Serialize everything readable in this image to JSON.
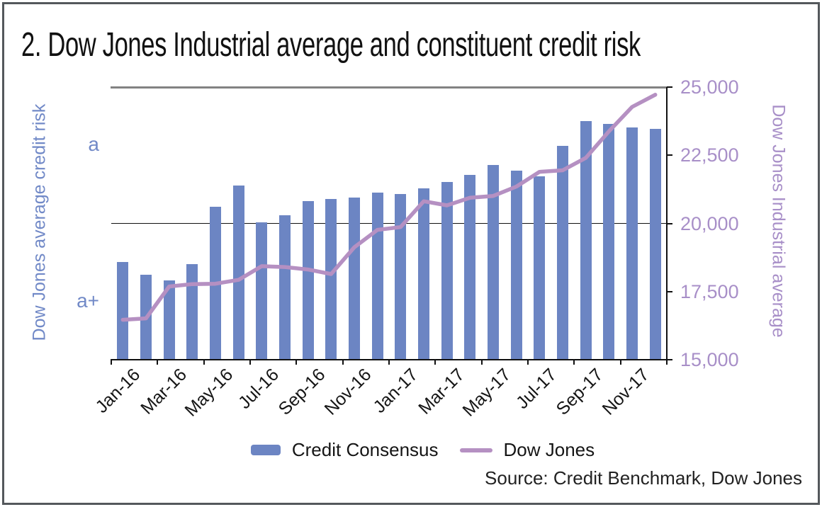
{
  "title": "2. Dow Jones Industrial average and constituent credit risk",
  "left_axis": {
    "title": "Dow Jones average credit risk",
    "ticks": [
      {
        "label": "a",
        "frac": 0.79
      },
      {
        "label": "a+",
        "frac": 0.215
      }
    ],
    "text_color": "#7189C7"
  },
  "right_axis": {
    "title": "Dow Jones Industrial average",
    "ticks": [
      {
        "label": "25,000",
        "value": 25000
      },
      {
        "label": "22,500",
        "value": 22500
      },
      {
        "label": "20,000",
        "value": 20000
      },
      {
        "label": "17,500",
        "value": 17500
      },
      {
        "label": "15,000",
        "value": 15000
      }
    ],
    "min": 15000,
    "max": 25000,
    "text_color": "#A88FC8"
  },
  "x_axis": {
    "tick_labels": [
      "Jan-16",
      "Mar-16",
      "May-16",
      "Jul-16",
      "Sep-16",
      "Nov-16",
      "Jan-17",
      "Mar-17",
      "May-17",
      "Jul-17",
      "Sep-17",
      "Nov-17"
    ]
  },
  "legend": {
    "items": [
      {
        "label": "Credit Consensus",
        "swatch": "bar",
        "color": "#6C85C3"
      },
      {
        "label": "Dow Jones",
        "swatch": "line",
        "color": "#B590C2"
      }
    ]
  },
  "source": "Source: Credit Benchmark, Dow Jones",
  "colors": {
    "bar": "#6C85C3",
    "line": "#B590C2",
    "left_text": "#7189C7",
    "right_text": "#A88FC8",
    "grid_top": "#828282",
    "grid_mid": "#111111",
    "axis": "#111111",
    "border": "#54585C",
    "text": "#151515"
  },
  "chart_data": {
    "type": "combo",
    "categories": [
      "Jan-16",
      "Feb-16",
      "Mar-16",
      "Apr-16",
      "May-16",
      "Jun-16",
      "Jul-16",
      "Aug-16",
      "Sep-16",
      "Oct-16",
      "Nov-16",
      "Dec-16",
      "Jan-17",
      "Feb-17",
      "Mar-17",
      "Apr-17",
      "May-17",
      "Jun-17",
      "Jul-17",
      "Aug-17",
      "Sep-17",
      "Oct-17",
      "Nov-17",
      "Dec-17"
    ],
    "series": [
      {
        "name": "Credit Consensus",
        "type": "bar",
        "axis": "left",
        "unit": "relative bar height, fraction of plot area (left axis shows credit grades a / a+)",
        "values": [
          0.359,
          0.313,
          0.292,
          0.352,
          0.56,
          0.638,
          0.505,
          0.531,
          0.583,
          0.589,
          0.594,
          0.612,
          0.609,
          0.628,
          0.651,
          0.677,
          0.714,
          0.693,
          0.674,
          0.784,
          0.875,
          0.865,
          0.852,
          0.846
        ]
      },
      {
        "name": "Dow Jones",
        "type": "line",
        "axis": "right",
        "unit": "index points",
        "values": [
          16466,
          16517,
          17685,
          17774,
          17787,
          17930,
          18432,
          18401,
          18308,
          18142,
          19124,
          19763,
          19864,
          20812,
          20663,
          20941,
          21009,
          21350,
          21891,
          21948,
          22405,
          23377,
          24272,
          24719
        ]
      }
    ],
    "left_axis_grades": [
      "a",
      "a+"
    ],
    "right_axis_range": [
      15000,
      25000
    ],
    "gridlines_at": [
      25000,
      20000,
      15000
    ],
    "legend_position": "bottom",
    "x_label_rotation": -45,
    "x_label_step": 2
  }
}
